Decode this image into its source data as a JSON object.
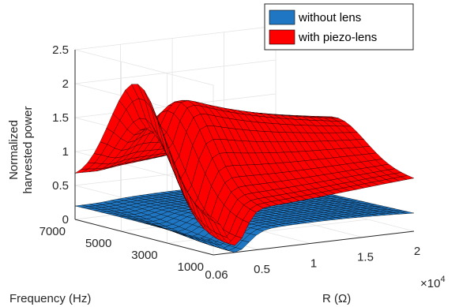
{
  "chart_data": {
    "type": "surface",
    "title": "",
    "zlabel": [
      "Normalized",
      "harvested power"
    ],
    "xlabel": "R (Ω)",
    "ylabel": "Frequency (Hz)",
    "x_exponent_label": "×10",
    "x_exponent_power": "4",
    "z_ticks": [
      "0",
      "0.5",
      "1",
      "1.5",
      "2",
      "2.5"
    ],
    "z_tick_values": [
      0,
      0.5,
      1,
      1.5,
      2,
      2.5
    ],
    "zlim": [
      0,
      2.5
    ],
    "x_ticks": [
      "0.06",
      "0.5",
      "1",
      "1.5",
      "2"
    ],
    "x_tick_values": [
      0.06,
      0.5,
      1,
      1.5,
      2
    ],
    "xlim": [
      0.06,
      2
    ],
    "y_ticks": [
      "1000",
      "3000",
      "5000",
      "7000"
    ],
    "y_tick_values": [
      1000,
      3000,
      5000,
      7000
    ],
    "ylim": [
      1000,
      7000
    ],
    "grid": true,
    "legend_position": "top-right",
    "series": [
      {
        "name": "without lens",
        "color": "#1f77c4",
        "description_values": {
          "peak_value": 0.15,
          "baseline": 0.25,
          "notch_at": {
            "R": 0.3,
            "frequency": 1000,
            "value": 0.0
          }
        }
      },
      {
        "name": "with piezo-lens",
        "color": "#ff0000",
        "description_values": {
          "peak_value": 2.2,
          "notch_at": {
            "R": 0.3,
            "frequency": 1000,
            "value": 0.1
          }
        }
      }
    ]
  }
}
